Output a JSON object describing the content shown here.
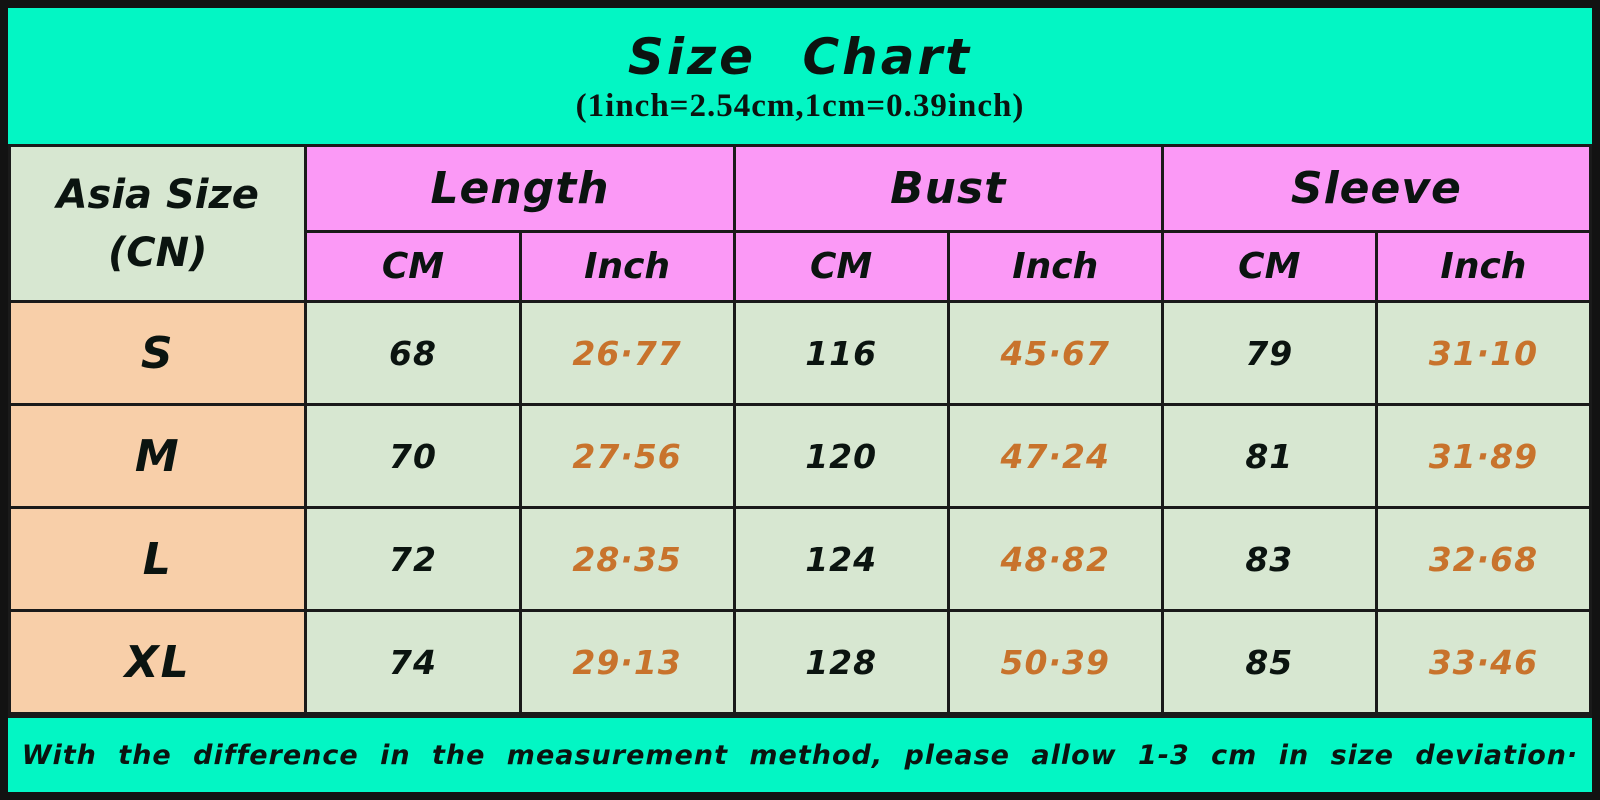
{
  "header": {
    "title": "Size Chart",
    "subtitle": "(1inch=2.54cm,1cm=0.39inch)"
  },
  "table": {
    "corner": {
      "line1": "Asia Size",
      "line2": "(CN)"
    },
    "groups": [
      {
        "label": "Length"
      },
      {
        "label": "Bust"
      },
      {
        "label": "Sleeve"
      }
    ],
    "units": [
      "CM",
      "Inch",
      "CM",
      "Inch",
      "CM",
      "Inch"
    ],
    "rows": [
      {
        "size": "S",
        "cells": [
          "68",
          "26·77",
          "116",
          "45·67",
          "79",
          "31·10"
        ]
      },
      {
        "size": "M",
        "cells": [
          "70",
          "27·56",
          "120",
          "47·24",
          "81",
          "31·89"
        ]
      },
      {
        "size": "L",
        "cells": [
          "72",
          "28·35",
          "124",
          "48·82",
          "83",
          "32·68"
        ]
      },
      {
        "size": "XL",
        "cells": [
          "74",
          "29·13",
          "128",
          "50·39",
          "85",
          "33·46"
        ]
      }
    ]
  },
  "footer": {
    "note": "With the difference in the measurement method, please allow 1-3 cm in size deviation·"
  },
  "colors": {
    "band_background": "#03f6c4",
    "pink_header_background": "#fb99f6",
    "green_cell_background": "#d7e7d1",
    "peach_size_background": "#f8cfa9",
    "inch_value_text": "#c8732c",
    "cm_value_text": "#0b1410",
    "border": "#1a1a1a"
  },
  "chart_data": {
    "type": "table",
    "title": "Size Chart",
    "subtitle": "(1inch=2.54cm,1cm=0.39inch)",
    "columns": [
      "Asia Size (CN)",
      "Length CM",
      "Length Inch",
      "Bust CM",
      "Bust Inch",
      "Sleeve CM",
      "Sleeve Inch"
    ],
    "rows": [
      [
        "S",
        68,
        26.77,
        116,
        45.67,
        79,
        31.1
      ],
      [
        "M",
        70,
        27.56,
        120,
        47.24,
        81,
        31.89
      ],
      [
        "L",
        72,
        28.35,
        124,
        48.82,
        83,
        32.68
      ],
      [
        "XL",
        74,
        29.13,
        128,
        50.39,
        85,
        33.46
      ]
    ],
    "note": "With the difference in the measurement method, please allow 1-3 cm in size deviation."
  }
}
